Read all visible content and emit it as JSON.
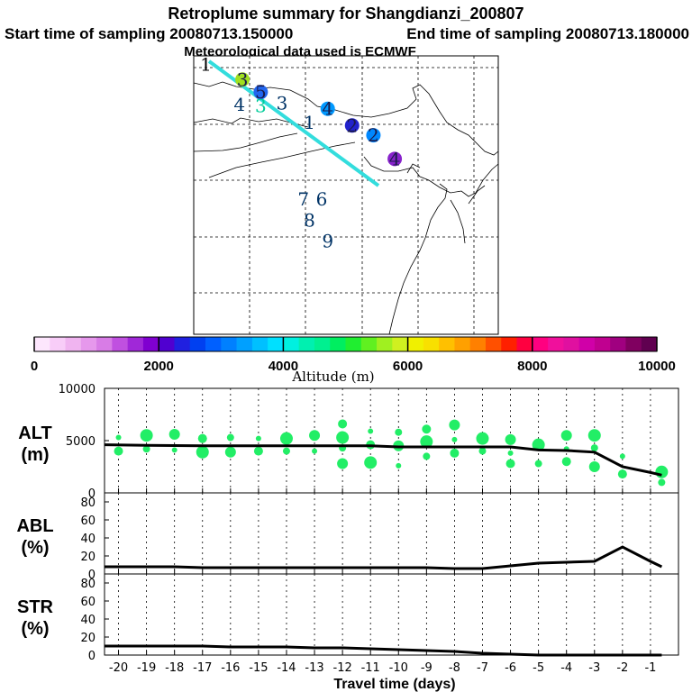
{
  "header": {
    "title": "Retroplume summary for Shangdianzi_200807",
    "start": "Start time of sampling 20080713.150000",
    "end": "End time of sampling 20080713.180000",
    "met": "Meteorological data used is ECMWF"
  },
  "map": {
    "track_color": "#33dddd",
    "markers": [
      {
        "label": "1",
        "lon": 0.04,
        "lat": 0.03,
        "color": "#000000"
      },
      {
        "label": "3",
        "lon": 0.16,
        "lat": 0.085,
        "color": "#a0e020",
        "blob": true
      },
      {
        "label": "4",
        "lon": 0.15,
        "lat": 0.175,
        "color": "#003366"
      },
      {
        "label": "5",
        "lon": 0.22,
        "lat": 0.13,
        "color": "#2266ee",
        "blob": true
      },
      {
        "label": "3",
        "lon": 0.22,
        "lat": 0.18,
        "color": "#00cc99"
      },
      {
        "label": "3",
        "lon": 0.29,
        "lat": 0.17,
        "color": "#003366"
      },
      {
        "label": "4",
        "lon": 0.44,
        "lat": 0.19,
        "color": "#0099ff",
        "blob": true
      },
      {
        "label": "1",
        "lon": 0.38,
        "lat": 0.24,
        "color": "#003366"
      },
      {
        "label": "2",
        "lon": 0.52,
        "lat": 0.25,
        "color": "#2222cc",
        "blob": true
      },
      {
        "label": "2",
        "lon": 0.59,
        "lat": 0.285,
        "color": "#0088ff",
        "blob": true
      },
      {
        "label": "4",
        "lon": 0.66,
        "lat": 0.37,
        "color": "#8822cc",
        "blob": true
      },
      {
        "label": "7",
        "lon": 0.36,
        "lat": 0.515,
        "color": "#003366"
      },
      {
        "label": "6",
        "lon": 0.42,
        "lat": 0.515,
        "color": "#003366"
      },
      {
        "label": "8",
        "lon": 0.38,
        "lat": 0.59,
        "color": "#003366"
      },
      {
        "label": "9",
        "lon": 0.44,
        "lat": 0.665,
        "color": "#003366"
      }
    ]
  },
  "colorbar": {
    "label": "Altitude (m)",
    "ticks": [
      "0",
      "2000",
      "4000",
      "6000",
      "8000",
      "10000"
    ],
    "colors": [
      "#fde6fd",
      "#f8cdf8",
      "#f0b4f0",
      "#e698ec",
      "#d87ce6",
      "#c050e0",
      "#a028d8",
      "#8000d0",
      "#5000d0",
      "#2020e0",
      "#0040f0",
      "#0060ff",
      "#0080ff",
      "#00a0ff",
      "#00c0ff",
      "#00e0ff",
      "#00f0e0",
      "#00f0b0",
      "#00f090",
      "#00ee60",
      "#20ee30",
      "#60f020",
      "#a0f020",
      "#d0f020",
      "#f0f000",
      "#f8e000",
      "#ffc000",
      "#ffa000",
      "#ff8000",
      "#ff5000",
      "#ff2000",
      "#ff0040",
      "#ff0080",
      "#f0109c",
      "#e010a0",
      "#d000a8",
      "#c00090",
      "#a00080",
      "#800060",
      "#600050"
    ]
  },
  "chart_data": [
    {
      "type": "line",
      "ylabel_top": "ALT",
      "ylabel_unit": "(m)",
      "ylim": [
        0,
        10000
      ],
      "yticks": [
        "0",
        "5000",
        "10000"
      ],
      "x": [
        -20.5,
        -19,
        -17,
        -16,
        -15,
        -14,
        -13,
        -12,
        -11,
        -10,
        -9,
        -8,
        -7,
        -6,
        -5,
        -4,
        -3,
        -2,
        -1,
        -0.6
      ],
      "median": [
        4600,
        4550,
        4500,
        4500,
        4500,
        4500,
        4500,
        4500,
        4500,
        4400,
        4400,
        4400,
        4400,
        4400,
        4100,
        4050,
        3900,
        2500,
        1950,
        1700
      ],
      "scatter_color": "#22ee66",
      "scatter": [
        {
          "x": -20,
          "y": 5300
        },
        {
          "x": -20,
          "y": 4000
        },
        {
          "x": -19,
          "y": 5500
        },
        {
          "x": -19,
          "y": 4200
        },
        {
          "x": -18,
          "y": 5600
        },
        {
          "x": -18,
          "y": 4100
        },
        {
          "x": -17,
          "y": 5200
        },
        {
          "x": -17,
          "y": 3900
        },
        {
          "x": -16,
          "y": 5300
        },
        {
          "x": -16,
          "y": 3900
        },
        {
          "x": -15,
          "y": 5200
        },
        {
          "x": -15,
          "y": 4000
        },
        {
          "x": -14,
          "y": 5200
        },
        {
          "x": -14,
          "y": 4000
        },
        {
          "x": -13,
          "y": 5500
        },
        {
          "x": -13,
          "y": 4000
        },
        {
          "x": -12,
          "y": 6600
        },
        {
          "x": -12,
          "y": 5300
        },
        {
          "x": -12,
          "y": 4300
        },
        {
          "x": -12,
          "y": 2800
        },
        {
          "x": -11,
          "y": 5900
        },
        {
          "x": -11,
          "y": 4600
        },
        {
          "x": -11,
          "y": 2900
        },
        {
          "x": -10,
          "y": 5800
        },
        {
          "x": -10,
          "y": 4500
        },
        {
          "x": -10,
          "y": 2600
        },
        {
          "x": -9,
          "y": 6100
        },
        {
          "x": -9,
          "y": 4900
        },
        {
          "x": -9,
          "y": 3500
        },
        {
          "x": -8,
          "y": 6500
        },
        {
          "x": -8,
          "y": 5100
        },
        {
          "x": -8,
          "y": 3800
        },
        {
          "x": -7,
          "y": 5200
        },
        {
          "x": -7,
          "y": 4000
        },
        {
          "x": -6,
          "y": 5100
        },
        {
          "x": -6,
          "y": 3800
        },
        {
          "x": -6,
          "y": 2800
        },
        {
          "x": -5,
          "y": 4600
        },
        {
          "x": -5,
          "y": 2800
        },
        {
          "x": -4,
          "y": 5500
        },
        {
          "x": -4,
          "y": 4200
        },
        {
          "x": -4,
          "y": 3000
        },
        {
          "x": -3,
          "y": 5500
        },
        {
          "x": -3,
          "y": 4300
        },
        {
          "x": -3,
          "y": 2500
        },
        {
          "x": -2,
          "y": 3500
        },
        {
          "x": -2,
          "y": 1800
        },
        {
          "x": -0.6,
          "y": 2000
        },
        {
          "x": -0.6,
          "y": 1000
        }
      ]
    },
    {
      "type": "line",
      "ylabel_top": "ABL",
      "ylabel_unit": "(%)",
      "ylim": [
        0,
        90
      ],
      "yticks": [
        "0",
        "20",
        "40",
        "60",
        "80"
      ],
      "x": [
        -20.5,
        -19,
        -18,
        -17,
        -16,
        -15,
        -14,
        -13,
        -12,
        -11,
        -10,
        -9,
        -8,
        -7,
        -6,
        -5,
        -4,
        -3,
        -2,
        -1,
        -0.6
      ],
      "values": [
        8,
        8,
        8,
        7,
        7,
        7,
        7,
        7,
        7,
        7,
        7,
        7,
        6,
        6,
        9,
        12,
        13,
        14,
        30,
        14,
        8
      ]
    },
    {
      "type": "line",
      "ylabel_top": "STR",
      "ylabel_unit": "(%)",
      "ylim": [
        0,
        90
      ],
      "yticks": [
        "0",
        "20",
        "40",
        "60",
        "80"
      ],
      "x": [
        -20.5,
        -19,
        -18,
        -17,
        -16,
        -15,
        -14,
        -13,
        -12,
        -11,
        -10,
        -9,
        -8,
        -7,
        -6,
        -5,
        -4,
        -3,
        -2,
        -1,
        -0.6
      ],
      "values": [
        10,
        10,
        10,
        10,
        9,
        9,
        9,
        8,
        8,
        7,
        6,
        5,
        4,
        2,
        1,
        0,
        0,
        0,
        0,
        0,
        0
      ]
    }
  ],
  "xaxis": {
    "label": "Travel time (days)",
    "ticks": [
      "-20",
      "-19",
      "-18",
      "-17",
      "-16",
      "-15",
      "-14",
      "-13",
      "-12",
      "-11",
      "-10",
      "-9",
      "-8",
      "-7",
      "-6",
      "-5",
      "-4",
      "-3",
      "-2",
      "-1"
    ]
  }
}
